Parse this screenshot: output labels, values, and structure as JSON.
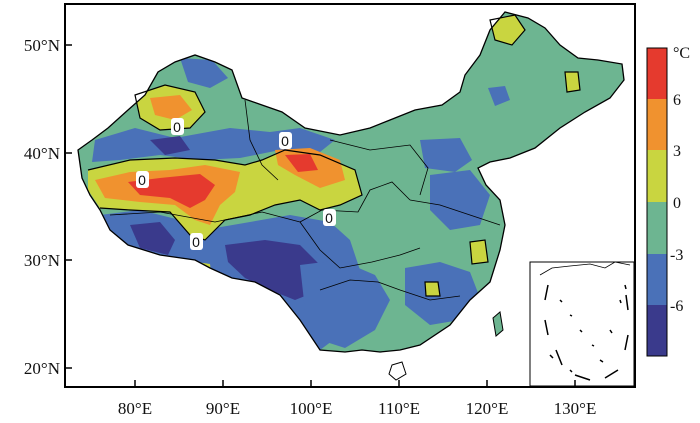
{
  "map": {
    "lat_ticks": [
      "50°N",
      "40°N",
      "30°N",
      "20°N"
    ],
    "lon_ticks": [
      "80°E",
      "90°E",
      "100°E",
      "110°E",
      "120°E",
      "130°E"
    ],
    "contour_labels": [
      "0",
      "0",
      "0",
      "0",
      "0",
      "0"
    ],
    "colorbar": {
      "unit": "°C",
      "tick_labels": [
        "6",
        "3",
        "0",
        "-3",
        "-6"
      ],
      "colors": [
        "#E53A2E",
        "#F0922F",
        "#C9D540",
        "#6DB591",
        "#4A71B8",
        "#3A3A8C"
      ]
    },
    "colors": {
      "deep_negative": "#3A3A8C",
      "negative": "#4A71B8",
      "near_zero": "#6DB591",
      "slight_positive": "#C9D540",
      "positive": "#F0922F",
      "strong_positive": "#E53A2E",
      "background": "#FFFFFF",
      "frame": "#000000"
    }
  }
}
